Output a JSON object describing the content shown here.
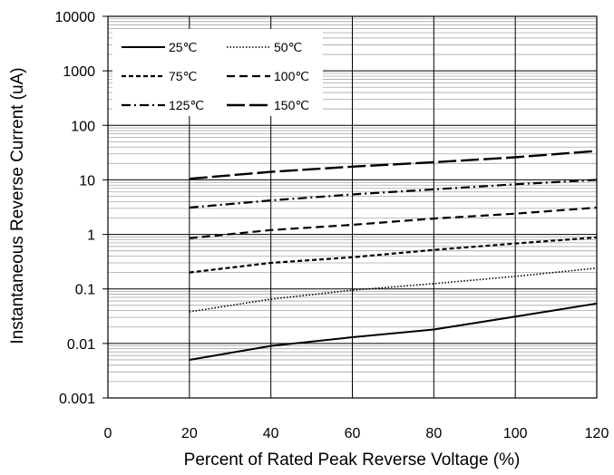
{
  "chart_data": {
    "type": "line",
    "xlabel": "Percent of  Rated Peak Reverse Voltage (%)",
    "ylabel": "Instantaneous Reverse Current (uA)",
    "xlim": [
      0,
      120
    ],
    "ylim": [
      0.001,
      10000
    ],
    "yscale": "log",
    "grid": true,
    "legend_position": "top-left",
    "x_ticks": [
      "0",
      "20",
      "40",
      "60",
      "80",
      "100",
      "120"
    ],
    "y_ticks": [
      "0.001",
      "0.01",
      "0.1",
      "1",
      "10",
      "100",
      "1000",
      "10000"
    ],
    "x": [
      20,
      40,
      60,
      80,
      100,
      120
    ],
    "series": [
      {
        "name": "25℃",
        "dash": "solid",
        "values": [
          0.005,
          0.009,
          0.013,
          0.018,
          0.031,
          0.054
        ]
      },
      {
        "name": "50℃",
        "dash": "dotted",
        "values": [
          0.038,
          0.065,
          0.095,
          0.125,
          0.17,
          0.24
        ]
      },
      {
        "name": "75℃",
        "dash": "short-dash",
        "values": [
          0.2,
          0.3,
          0.38,
          0.52,
          0.68,
          0.88
        ]
      },
      {
        "name": "100℃",
        "dash": "dash",
        "values": [
          0.85,
          1.2,
          1.5,
          1.95,
          2.4,
          3.1
        ]
      },
      {
        "name": "125℃",
        "dash": "dash-dot",
        "values": [
          3.1,
          4.2,
          5.4,
          6.7,
          8.3,
          10
        ]
      },
      {
        "name": "150℃",
        "dash": "long-dash",
        "values": [
          10.5,
          14,
          17.5,
          21,
          26,
          34
        ]
      }
    ]
  }
}
